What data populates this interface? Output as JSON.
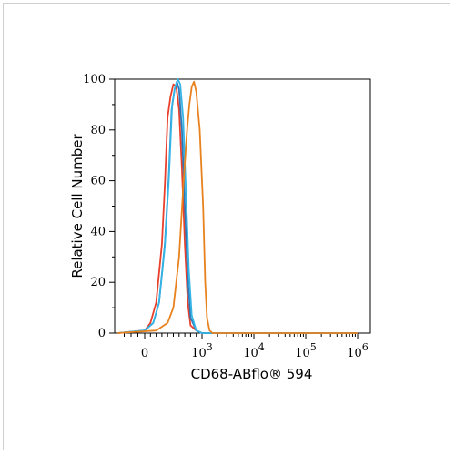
{
  "chart_data": {
    "type": "line",
    "title": "",
    "xlabel": "CD68-ABflo® 594",
    "ylabel": "Relative Cell Number",
    "x_scale": "biexponential",
    "ylim": [
      0,
      100
    ],
    "y_ticks": [
      {
        "value": 0,
        "label": "0"
      },
      {
        "value": 20,
        "label": "20"
      },
      {
        "value": 40,
        "label": "40"
      },
      {
        "value": 60,
        "label": "60"
      },
      {
        "value": 80,
        "label": "80"
      },
      {
        "value": 100,
        "label": "100"
      }
    ],
    "x_ticks": [
      {
        "value": 0,
        "base": "0",
        "exp": ""
      },
      {
        "value": 1000,
        "base": "10",
        "exp": "3"
      },
      {
        "value": 10000,
        "base": "10",
        "exp": "4"
      },
      {
        "value": 100000,
        "base": "10",
        "exp": "5"
      },
      {
        "value": 1000000,
        "base": "10",
        "exp": "6"
      }
    ],
    "grid": false,
    "legend": "none",
    "series": [
      {
        "color": "#e8412b",
        "points": [
          [
            -400,
            0
          ],
          [
            0,
            1
          ],
          [
            100,
            4
          ],
          [
            200,
            12
          ],
          [
            300,
            35
          ],
          [
            350,
            58
          ],
          [
            400,
            85
          ],
          [
            450,
            93
          ],
          [
            500,
            98
          ],
          [
            550,
            97
          ],
          [
            600,
            88
          ],
          [
            650,
            65
          ],
          [
            700,
            35
          ],
          [
            750,
            12
          ],
          [
            800,
            3
          ],
          [
            900,
            1
          ],
          [
            1000,
            0
          ],
          [
            1000000,
            0
          ]
        ]
      },
      {
        "color": "#2e78b8",
        "points": [
          [
            -400,
            0
          ],
          [
            0,
            1
          ],
          [
            150,
            4
          ],
          [
            250,
            12
          ],
          [
            350,
            35
          ],
          [
            420,
            62
          ],
          [
            470,
            88
          ],
          [
            520,
            96
          ],
          [
            560,
            99
          ],
          [
            600,
            96
          ],
          [
            650,
            80
          ],
          [
            700,
            50
          ],
          [
            750,
            22
          ],
          [
            800,
            6
          ],
          [
            900,
            1
          ],
          [
            1000,
            0
          ],
          [
            1000000,
            0
          ]
        ]
      },
      {
        "color": "#35b4e6",
        "points": [
          [
            -400,
            0
          ],
          [
            0,
            1
          ],
          [
            150,
            4
          ],
          [
            250,
            12
          ],
          [
            350,
            34
          ],
          [
            420,
            60
          ],
          [
            480,
            90
          ],
          [
            530,
            97
          ],
          [
            580,
            100
          ],
          [
            620,
            98
          ],
          [
            670,
            85
          ],
          [
            720,
            55
          ],
          [
            770,
            25
          ],
          [
            820,
            7
          ],
          [
            900,
            1
          ],
          [
            1000,
            0
          ],
          [
            1000000,
            0
          ]
        ]
      },
      {
        "color": "#e8821e",
        "points": [
          [
            -400,
            0
          ],
          [
            200,
            1
          ],
          [
            400,
            4
          ],
          [
            500,
            10
          ],
          [
            600,
            30
          ],
          [
            680,
            60
          ],
          [
            740,
            80
          ],
          [
            780,
            90
          ],
          [
            820,
            97
          ],
          [
            860,
            99
          ],
          [
            900,
            95
          ],
          [
            960,
            80
          ],
          [
            1050,
            50
          ],
          [
            1150,
            20
          ],
          [
            1250,
            6
          ],
          [
            1400,
            1
          ],
          [
            1600,
            0
          ],
          [
            1000000,
            0
          ]
        ]
      }
    ]
  }
}
